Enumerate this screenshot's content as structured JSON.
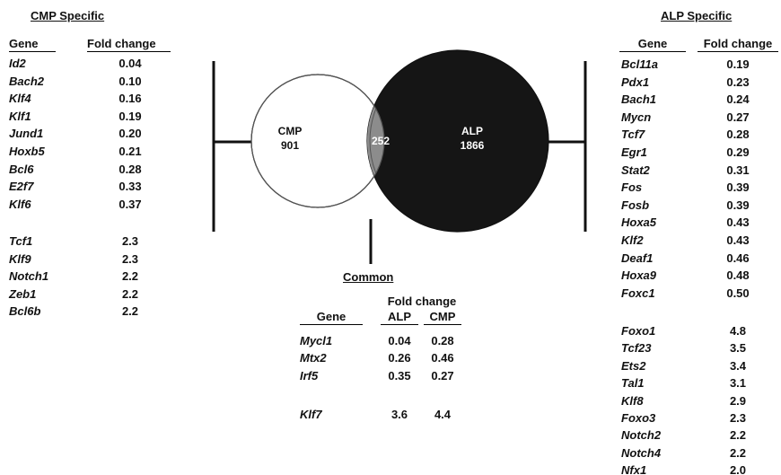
{
  "cmp_specific": {
    "title": "CMP Specific",
    "col_gene": "Gene",
    "col_fold": "Fold change",
    "down": [
      {
        "gene": "Id2",
        "fold": "0.04"
      },
      {
        "gene": "Bach2",
        "fold": "0.10"
      },
      {
        "gene": "Klf4",
        "fold": "0.16"
      },
      {
        "gene": "Klf1",
        "fold": "0.19"
      },
      {
        "gene": "Jund1",
        "fold": "0.20"
      },
      {
        "gene": "Hoxb5",
        "fold": "0.21"
      },
      {
        "gene": "Bcl6",
        "fold": "0.28"
      },
      {
        "gene": "E2f7",
        "fold": "0.33"
      },
      {
        "gene": "Klf6",
        "fold": "0.37"
      }
    ],
    "up": [
      {
        "gene": "Tcf1",
        "fold": "2.3"
      },
      {
        "gene": "Klf9",
        "fold": "2.3"
      },
      {
        "gene": "Notch1",
        "fold": "2.2"
      },
      {
        "gene": "Zeb1",
        "fold": "2.2"
      },
      {
        "gene": "Bcl6b",
        "fold": "2.2"
      }
    ]
  },
  "alp_specific": {
    "title": "ALP Specific",
    "col_gene": "Gene",
    "col_fold": "Fold change",
    "down": [
      {
        "gene": "Bcl11a",
        "fold": "0.19"
      },
      {
        "gene": "Pdx1",
        "fold": "0.23"
      },
      {
        "gene": "Bach1",
        "fold": "0.24"
      },
      {
        "gene": "Mycn",
        "fold": "0.27"
      },
      {
        "gene": "Tcf7",
        "fold": "0.28"
      },
      {
        "gene": "Egr1",
        "fold": "0.29"
      },
      {
        "gene": "Stat2",
        "fold": "0.31"
      },
      {
        "gene": "Fos",
        "fold": "0.39"
      },
      {
        "gene": "Fosb",
        "fold": "0.39"
      },
      {
        "gene": "Hoxa5",
        "fold": "0.43"
      },
      {
        "gene": "Klf2",
        "fold": "0.43"
      },
      {
        "gene": "Deaf1",
        "fold": "0.46"
      },
      {
        "gene": "Hoxa9",
        "fold": "0.48"
      },
      {
        "gene": "Foxc1",
        "fold": "0.50"
      }
    ],
    "up": [
      {
        "gene": "Foxo1",
        "fold": "4.8"
      },
      {
        "gene": "Tcf23",
        "fold": "3.5"
      },
      {
        "gene": "Ets2",
        "fold": "3.4"
      },
      {
        "gene": "Tal1",
        "fold": "3.1"
      },
      {
        "gene": "Klf8",
        "fold": "2.9"
      },
      {
        "gene": "Foxo3",
        "fold": "2.3"
      },
      {
        "gene": "Notch2",
        "fold": "2.2"
      },
      {
        "gene": "Notch4",
        "fold": "2.2"
      },
      {
        "gene": "Nfx1",
        "fold": "2.0"
      }
    ]
  },
  "common": {
    "title": "Common",
    "col_gene": "Gene",
    "col_fold": "Fold change",
    "col_alp": "ALP",
    "col_cmp": "CMP",
    "rows": [
      {
        "gene": "Mycl1",
        "alp": "0.04",
        "cmp": "0.28"
      },
      {
        "gene": "Mtx2",
        "alp": "0.26",
        "cmp": "0.46"
      },
      {
        "gene": "Irf5",
        "alp": "0.35",
        "cmp": "0.27"
      }
    ],
    "rows_up": [
      {
        "gene": "Klf7",
        "alp": "3.6",
        "cmp": "4.4"
      }
    ]
  },
  "venn": {
    "cmp_label": "CMP",
    "cmp_count": "901",
    "overlap_count": "252",
    "alp_label": "ALP",
    "alp_count": "1866",
    "colors": {
      "cmp": "#ffffff",
      "overlap": "#8c8c8c",
      "alp": "#151515",
      "stroke": "#111111"
    }
  }
}
